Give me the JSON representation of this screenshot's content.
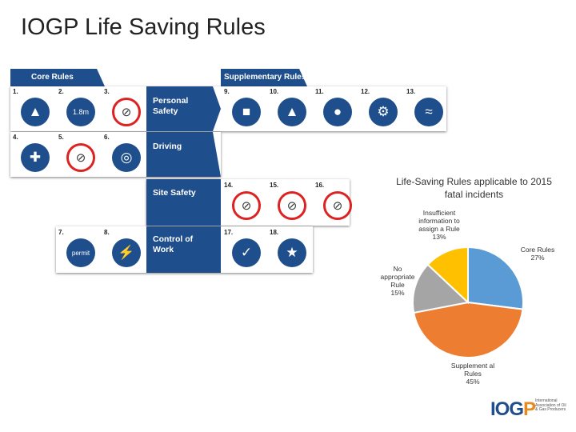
{
  "slide": {
    "title": "IOGP Life Saving Rules"
  },
  "rules_grid": {
    "core_header": "Core Rules",
    "supplementary_header": "Supplementary Rules",
    "categories": [
      "Personal Safety",
      "Driving",
      "Site Safety",
      "Control of Work"
    ],
    "rule_numbers": [
      "1.",
      "2.",
      "3.",
      "4.",
      "5.",
      "6.",
      "7.",
      "8.",
      "9.",
      "10.",
      "11.",
      "12.",
      "13.",
      "14.",
      "15.",
      "16.",
      "17.",
      "18."
    ],
    "icon_names": [
      "fall-protection-icon",
      "height-icon",
      "no-alcohol-icon",
      "seatbelt-icon",
      "no-speeding-icon",
      "journey-plan-icon",
      "permit-icon",
      "energy-isolation-icon",
      "confined-space-icon",
      "lifting-icon",
      "gas-test-icon",
      "bypass-icon",
      "water-icon",
      "no-walk-under-load-icon",
      "line-of-fire-icon",
      "no-smoking-icon",
      "permit-check-icon",
      "safe-work-icon"
    ],
    "height_mark": "1.8m",
    "permit_mark": "permit"
  },
  "logo": {
    "text_main": "IOG",
    "text_accent": "P",
    "subtitle": "International Association of Oil & Gas Producers"
  },
  "chart_data": {
    "type": "pie",
    "title": "Life-Saving Rules applicable to 2015 fatal incidents",
    "slices": [
      {
        "label": "Core Rules",
        "value": 27,
        "pct_label": "27%",
        "color": "#5b9bd5"
      },
      {
        "label": "Supplement al Rules",
        "value": 45,
        "pct_label": "45%",
        "color": "#ed7d31"
      },
      {
        "label": "No appropriate Rule",
        "value": 15,
        "pct_label": "15%",
        "color": "#a5a5a5"
      },
      {
        "label": "Insufficient information to assign a Rule",
        "value": 13,
        "pct_label": "13%",
        "color": "#ffc000"
      }
    ],
    "start_angle_deg": 0,
    "direction": "clockwise"
  }
}
